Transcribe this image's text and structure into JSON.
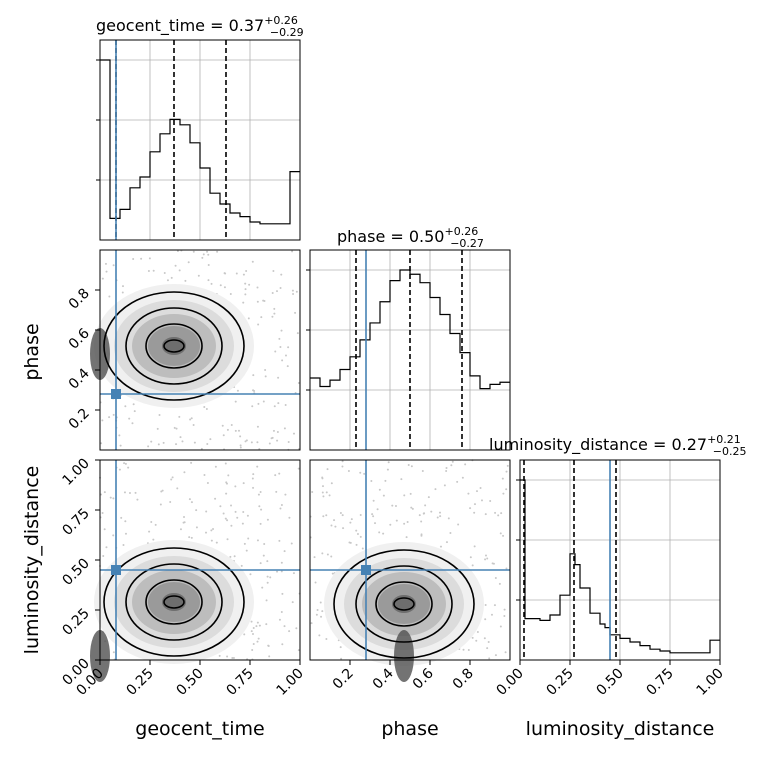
{
  "chart_data": {
    "type": "corner",
    "parameters": [
      "geocent_time",
      "phase",
      "luminosity_distance"
    ],
    "axis_labels": {
      "geocent_time": "geocent_time",
      "phase": "phase",
      "luminosity_distance": "luminosity_distance"
    },
    "ranges": {
      "geocent_time": [
        0.0,
        1.0
      ],
      "phase": [
        0.0,
        1.0
      ],
      "luminosity_distance": [
        0.0,
        1.0
      ]
    },
    "ticks": {
      "geocent_time": [
        "0.00",
        "0.25",
        "0.50",
        "0.75",
        "1.00"
      ],
      "phase_x": [
        "0.2",
        "0.4",
        "0.6",
        "0.8"
      ],
      "phase_y": [
        "0.2",
        "0.4",
        "0.6",
        "0.8"
      ],
      "luminosity_distance": [
        "0.00",
        "0.25",
        "0.50",
        "0.75",
        "1.00"
      ]
    },
    "grid": true,
    "titles": [
      {
        "param": "geocent_time",
        "label": "geocent_time = 0.37",
        "plus": "+0.26",
        "minus": "−0.29"
      },
      {
        "param": "phase",
        "label": "phase = 0.50",
        "plus": "+0.26",
        "minus": "−0.27"
      },
      {
        "param": "luminosity_distance",
        "label": "luminosity_distance = 0.27",
        "plus": "+0.21",
        "minus": "−0.25"
      }
    ],
    "quantiles": {
      "geocent_time": [
        0.08,
        0.37,
        0.63
      ],
      "phase": [
        0.23,
        0.5,
        0.76
      ],
      "luminosity_distance": [
        0.02,
        0.27,
        0.48
      ]
    },
    "truths": {
      "geocent_time": 0.08,
      "phase": 0.28,
      "luminosity_distance": 0.45
    },
    "histograms": {
      "geocent_time": {
        "edges": [
          0,
          0.05,
          0.1,
          0.15,
          0.2,
          0.25,
          0.3,
          0.35,
          0.4,
          0.45,
          0.5,
          0.55,
          0.6,
          0.65,
          0.7,
          0.75,
          0.8,
          0.85,
          0.9,
          0.95,
          1.0
        ],
        "counts": [
          100,
          12,
          17,
          29,
          35,
          49,
          59,
          67,
          64,
          54,
          40,
          26,
          20,
          15,
          13,
          10,
          9,
          9,
          9,
          38
        ]
      },
      "phase": {
        "edges": [
          0,
          0.05,
          0.1,
          0.15,
          0.2,
          0.25,
          0.3,
          0.35,
          0.4,
          0.45,
          0.5,
          0.55,
          0.6,
          0.65,
          0.7,
          0.75,
          0.8,
          0.85,
          0.9,
          0.95,
          1.0
        ],
        "counts": [
          34,
          30,
          33,
          38,
          44,
          52,
          60,
          70,
          80,
          85,
          83,
          79,
          72,
          64,
          55,
          46,
          35,
          29,
          31,
          32
        ]
      },
      "luminosity_distance": {
        "edges": [
          0,
          0.025,
          0.05,
          0.1,
          0.15,
          0.2,
          0.25,
          0.275,
          0.3,
          0.35,
          0.4,
          0.425,
          0.45,
          0.5,
          0.55,
          0.6,
          0.65,
          0.7,
          0.75,
          0.8,
          0.85,
          0.9,
          0.95,
          1.0
        ],
        "counts": [
          100,
          23,
          23,
          22,
          25,
          36,
          59,
          53,
          40,
          26,
          20,
          18,
          14,
          12,
          10,
          8,
          6,
          5,
          4,
          4,
          4,
          4,
          11
        ]
      }
    },
    "density_peaks": [
      {
        "x": "geocent_time",
        "y": "phase",
        "peak": [
          0.37,
          0.52
        ],
        "secondary": [
          0.0,
          0.48
        ]
      },
      {
        "x": "geocent_time",
        "y": "luminosity_distance",
        "peak": [
          0.37,
          0.29
        ],
        "secondary": [
          0.0,
          0.02
        ]
      },
      {
        "x": "phase",
        "y": "luminosity_distance",
        "peak": [
          0.47,
          0.28
        ],
        "secondary": [
          0.47,
          0.02
        ]
      }
    ]
  }
}
